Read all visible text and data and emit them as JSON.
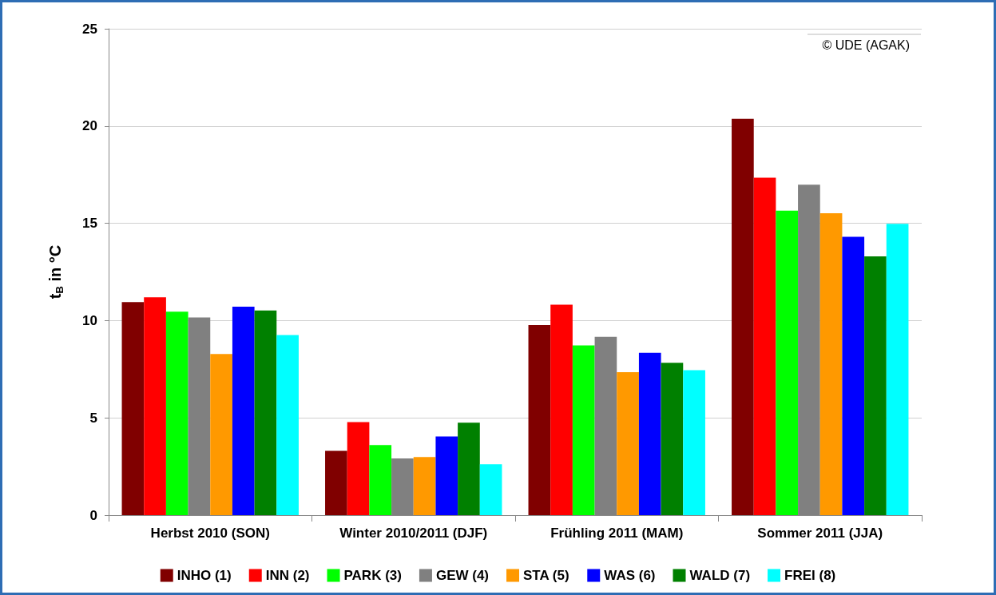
{
  "chart_data": {
    "type": "bar",
    "ylabel": "t$_{B}$ in °C",
    "categories": [
      "Herbst 2010 (SON)",
      "Winter 2010/2011 (DJF)",
      "Frühling 2011 (MAM)",
      "Sommer 2011 (JJA)"
    ],
    "series": [
      {
        "name": "INHO (1)",
        "color": "#800000",
        "values": [
          10.95,
          3.3,
          9.77,
          20.37
        ]
      },
      {
        "name": "INN (2)",
        "color": "#ff0000",
        "values": [
          11.2,
          4.78,
          10.82,
          17.34
        ]
      },
      {
        "name": "PARK (3)",
        "color": "#00ff00",
        "values": [
          10.46,
          3.6,
          8.72,
          15.65
        ]
      },
      {
        "name": "GEW (4)",
        "color": "#808080",
        "values": [
          10.16,
          2.91,
          9.16,
          16.98
        ]
      },
      {
        "name": "STA (5)",
        "color": "#ff9900",
        "values": [
          8.28,
          2.99,
          7.35,
          15.52
        ]
      },
      {
        "name": "WAS (6)",
        "color": "#0000ff",
        "values": [
          10.71,
          4.04,
          8.34,
          14.31
        ]
      },
      {
        "name": "WALD (7)",
        "color": "#008000",
        "values": [
          10.52,
          4.75,
          7.83,
          13.3
        ]
      },
      {
        "name": "FREI (8)",
        "color": "#00ffff",
        "values": [
          9.26,
          2.62,
          7.45,
          14.97
        ]
      }
    ],
    "ylim": [
      0,
      25
    ],
    "yticks": [
      0,
      5,
      10,
      15,
      20,
      25
    ],
    "grid": "y",
    "legend": "bottom",
    "annotations": [
      "© UDE (AGAK)"
    ]
  }
}
